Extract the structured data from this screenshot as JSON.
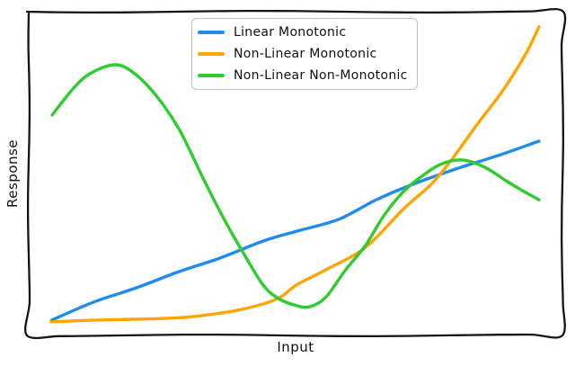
{
  "figure": {
    "background": "#ffffff",
    "frame_color": "#141414",
    "text_color": "#111111",
    "sketch_style": "xkcd"
  },
  "chart_data": {
    "type": "line",
    "title": "",
    "xlabel": "Input",
    "ylabel": "Response",
    "x_tick_labels": [],
    "y_tick_labels": [],
    "xlim": [
      0,
      1
    ],
    "ylim": [
      0,
      1
    ],
    "grid": false,
    "legend_position": "upper center-left",
    "series": [
      {
        "name": "Linear Monotonic",
        "color": "#1f8ceb",
        "points": [
          [
            0.043,
            0.047
          ],
          [
            0.12,
            0.102
          ],
          [
            0.2,
            0.146
          ],
          [
            0.28,
            0.196
          ],
          [
            0.36,
            0.24
          ],
          [
            0.44,
            0.292
          ],
          [
            0.502,
            0.322
          ],
          [
            0.58,
            0.358
          ],
          [
            0.65,
            0.418
          ],
          [
            0.72,
            0.467
          ],
          [
            0.8,
            0.514
          ],
          [
            0.88,
            0.556
          ],
          [
            0.956,
            0.6
          ]
        ]
      },
      {
        "name": "Non-Linear Monotonic",
        "color": "#ffa400",
        "points": [
          [
            0.042,
            0.042
          ],
          [
            0.12,
            0.047
          ],
          [
            0.199,
            0.05
          ],
          [
            0.26,
            0.053
          ],
          [
            0.308,
            0.058
          ],
          [
            0.392,
            0.078
          ],
          [
            0.463,
            0.111
          ],
          [
            0.502,
            0.156
          ],
          [
            0.557,
            0.203
          ],
          [
            0.631,
            0.272
          ],
          [
            0.703,
            0.392
          ],
          [
            0.754,
            0.467
          ],
          [
            0.793,
            0.544
          ],
          [
            0.838,
            0.647
          ],
          [
            0.889,
            0.758
          ],
          [
            0.931,
            0.869
          ],
          [
            0.956,
            0.953
          ]
        ]
      },
      {
        "name": "Non-Linear Non-Monotonic",
        "color": "#2ecc2e",
        "points": [
          [
            0.044,
            0.681
          ],
          [
            0.081,
            0.758
          ],
          [
            0.114,
            0.808
          ],
          [
            0.162,
            0.836
          ],
          [
            0.199,
            0.808
          ],
          [
            0.241,
            0.736
          ],
          [
            0.283,
            0.633
          ],
          [
            0.328,
            0.481
          ],
          [
            0.367,
            0.356
          ],
          [
            0.401,
            0.258
          ],
          [
            0.439,
            0.156
          ],
          [
            0.468,
            0.114
          ],
          [
            0.502,
            0.092
          ],
          [
            0.527,
            0.089
          ],
          [
            0.557,
            0.119
          ],
          [
            0.594,
            0.203
          ],
          [
            0.631,
            0.278
          ],
          [
            0.665,
            0.369
          ],
          [
            0.699,
            0.439
          ],
          [
            0.732,
            0.486
          ],
          [
            0.771,
            0.528
          ],
          [
            0.813,
            0.542
          ],
          [
            0.855,
            0.519
          ],
          [
            0.897,
            0.475
          ],
          [
            0.931,
            0.442
          ],
          [
            0.956,
            0.419
          ]
        ]
      }
    ]
  }
}
